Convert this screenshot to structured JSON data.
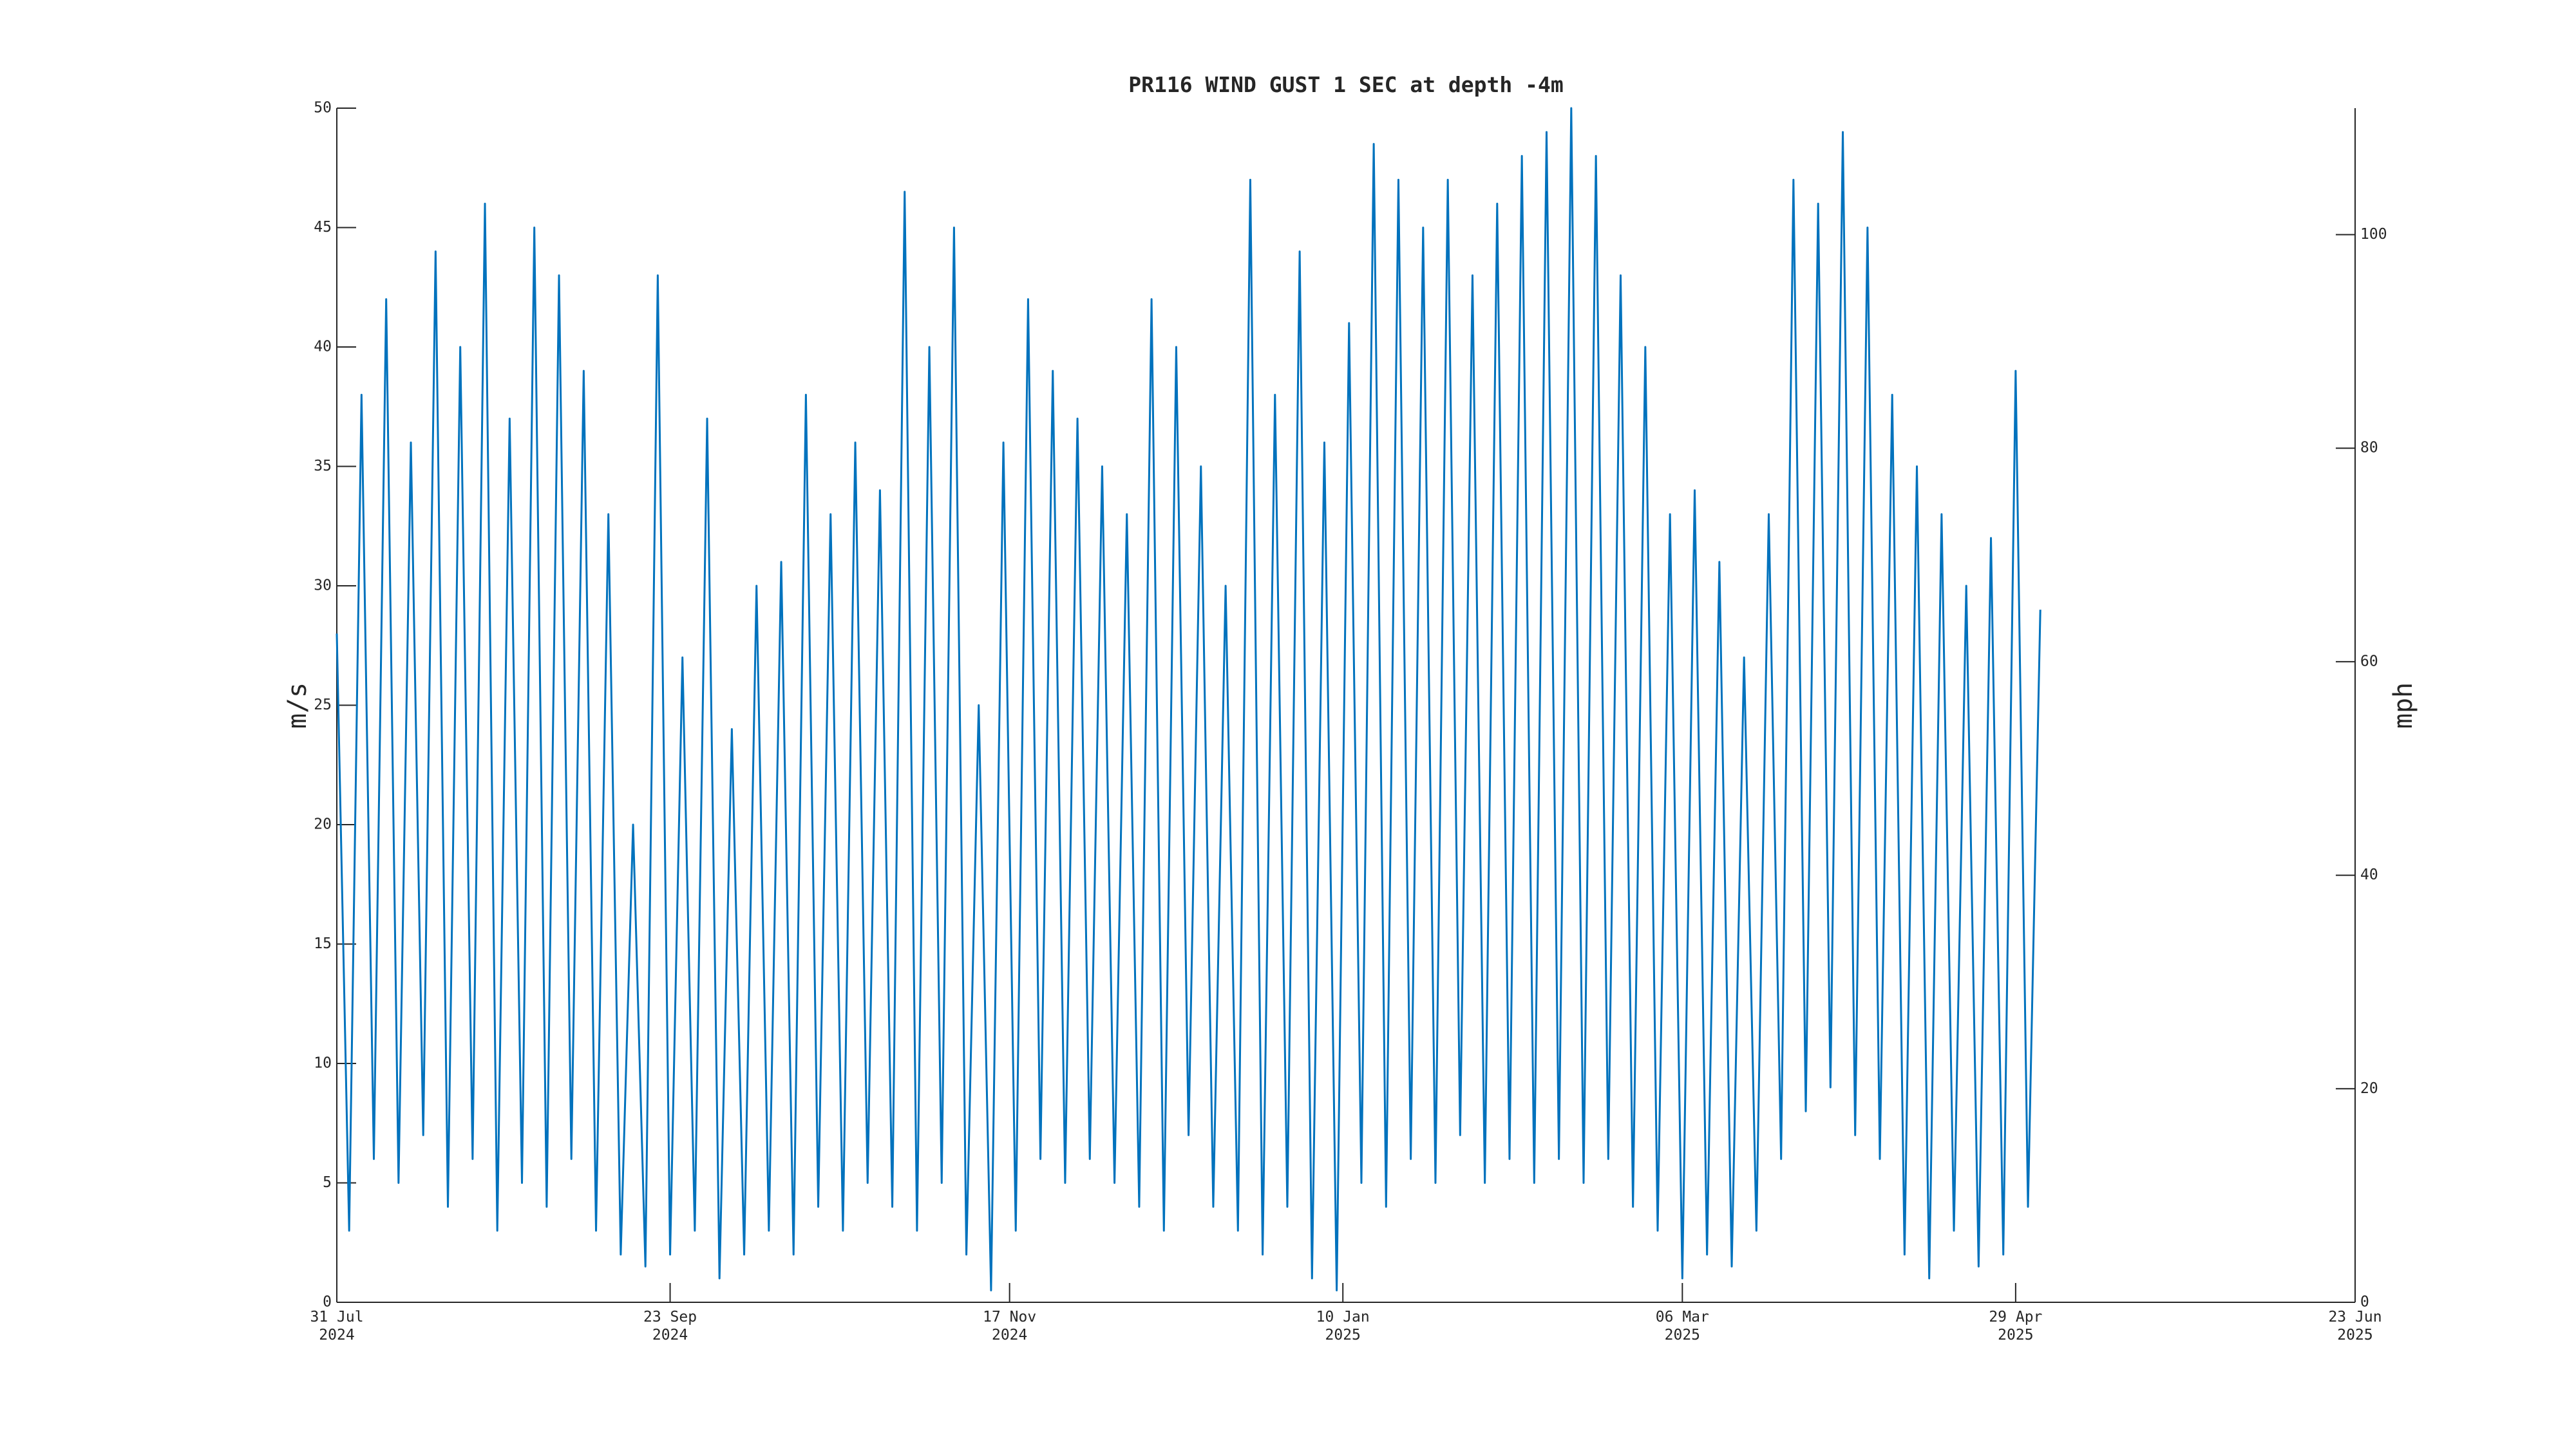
{
  "chart_data": {
    "type": "line",
    "title": "PR116 WIND GUST 1 SEC at depth -4m",
    "ylabel": "m/s",
    "y2label": "mph",
    "xlim": [
      "2024-07-31",
      "2025-06-23"
    ],
    "xticks": [
      {
        "value": "2024-07-31",
        "label": "31 Jul 2024"
      },
      {
        "value": "2024-09-23",
        "label": "23 Sep 2024"
      },
      {
        "value": "2024-11-17",
        "label": "17 Nov 2024"
      },
      {
        "value": "2025-01-10",
        "label": "10 Jan 2025"
      },
      {
        "value": "2025-03-06",
        "label": "06 Mar 2025"
      },
      {
        "value": "2025-04-29",
        "label": "29 Apr 2025"
      },
      {
        "value": "2025-06-23",
        "label": "23 Jun 2025"
      }
    ],
    "ylim": [
      0,
      50
    ],
    "yticks": [
      0,
      5,
      10,
      15,
      20,
      25,
      30,
      35,
      40,
      45,
      50
    ],
    "y2lim": [
      0,
      111.85
    ],
    "y2ticks": [
      0,
      20,
      40,
      60,
      80,
      100
    ],
    "x": [
      "2024-07-31",
      "2024-08-02",
      "2024-08-04",
      "2024-08-06",
      "2024-08-08",
      "2024-08-10",
      "2024-08-12",
      "2024-08-14",
      "2024-08-16",
      "2024-08-18",
      "2024-08-20",
      "2024-08-22",
      "2024-08-24",
      "2024-08-26",
      "2024-08-28",
      "2024-08-30",
      "2024-09-01",
      "2024-09-03",
      "2024-09-05",
      "2024-09-07",
      "2024-09-09",
      "2024-09-11",
      "2024-09-13",
      "2024-09-15",
      "2024-09-17",
      "2024-09-19",
      "2024-09-21",
      "2024-09-23",
      "2024-09-25",
      "2024-09-27",
      "2024-09-29",
      "2024-10-01",
      "2024-10-03",
      "2024-10-05",
      "2024-10-07",
      "2024-10-09",
      "2024-10-11",
      "2024-10-13",
      "2024-10-15",
      "2024-10-17",
      "2024-10-19",
      "2024-10-21",
      "2024-10-23",
      "2024-10-25",
      "2024-10-27",
      "2024-10-29",
      "2024-10-31",
      "2024-11-02",
      "2024-11-04",
      "2024-11-06",
      "2024-11-08",
      "2024-11-10",
      "2024-11-12",
      "2024-11-14",
      "2024-11-16",
      "2024-11-18",
      "2024-11-20",
      "2024-11-22",
      "2024-11-24",
      "2024-11-26",
      "2024-11-28",
      "2024-11-30",
      "2024-12-02",
      "2024-12-04",
      "2024-12-06",
      "2024-12-08",
      "2024-12-10",
      "2024-12-12",
      "2024-12-14",
      "2024-12-16",
      "2024-12-18",
      "2024-12-20",
      "2024-12-22",
      "2024-12-24",
      "2024-12-26",
      "2024-12-28",
      "2024-12-30",
      "2025-01-01",
      "2025-01-03",
      "2025-01-05",
      "2025-01-07",
      "2025-01-09",
      "2025-01-11",
      "2025-01-13",
      "2025-01-15",
      "2025-01-17",
      "2025-01-19",
      "2025-01-21",
      "2025-01-23",
      "2025-01-25",
      "2025-01-27",
      "2025-01-29",
      "2025-01-31",
      "2025-02-02",
      "2025-02-04",
      "2025-02-06",
      "2025-02-08",
      "2025-02-10",
      "2025-02-12",
      "2025-02-14",
      "2025-02-16",
      "2025-02-18",
      "2025-02-20",
      "2025-02-22",
      "2025-02-24",
      "2025-02-26",
      "2025-02-28",
      "2025-03-02",
      "2025-03-04",
      "2025-03-06",
      "2025-03-08",
      "2025-03-10",
      "2025-03-12",
      "2025-03-14",
      "2025-03-16",
      "2025-03-18",
      "2025-03-20",
      "2025-03-22",
      "2025-03-24",
      "2025-03-26",
      "2025-03-28",
      "2025-03-30",
      "2025-04-01",
      "2025-04-03",
      "2025-04-05",
      "2025-04-07",
      "2025-04-09",
      "2025-04-11",
      "2025-04-13",
      "2025-04-15",
      "2025-04-17",
      "2025-04-19",
      "2025-04-21",
      "2025-04-23",
      "2025-04-25",
      "2025-04-27",
      "2025-04-29",
      "2025-05-01",
      "2025-05-03"
    ],
    "series": [
      {
        "color": "#0072bd",
        "values": [
          28,
          3,
          38,
          6,
          42,
          5,
          36,
          7,
          44,
          4,
          40,
          6,
          46,
          3,
          37,
          5,
          45,
          4,
          43,
          6,
          39,
          3,
          33,
          2,
          20,
          1.5,
          43,
          2,
          27,
          3,
          37,
          1,
          24,
          2,
          30,
          3,
          31,
          2,
          38,
          4,
          33,
          3,
          36,
          5,
          34,
          4,
          46.5,
          3,
          40,
          5,
          45,
          2,
          25,
          0.5,
          36,
          3,
          42,
          6,
          39,
          5,
          37,
          6,
          35,
          5,
          33,
          4,
          42,
          3,
          40,
          7,
          35,
          4,
          30,
          3,
          47,
          2,
          38,
          4,
          44,
          1,
          36,
          0.5,
          41,
          5,
          48.5,
          4,
          47,
          6,
          45,
          5,
          47,
          7,
          43,
          5,
          46,
          6,
          48,
          5,
          49,
          6,
          50,
          5,
          48,
          6,
          43,
          4,
          40,
          3,
          33,
          1,
          34,
          2,
          31,
          1.5,
          27,
          3,
          33,
          6,
          47,
          8,
          46,
          9,
          49,
          7,
          45,
          6,
          38,
          2,
          35,
          1,
          33,
          3,
          30,
          1.5,
          32,
          2,
          39,
          4,
          29
        ]
      }
    ]
  }
}
